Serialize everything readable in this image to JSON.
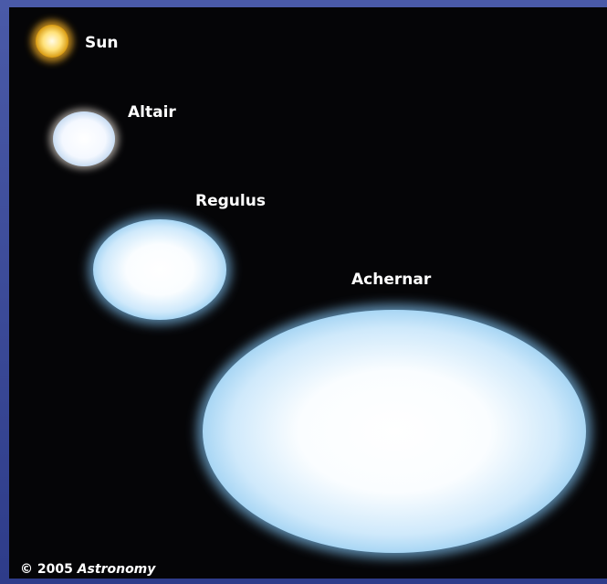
{
  "stars": [
    {
      "label": "Sun"
    },
    {
      "label": "Altair"
    },
    {
      "label": "Regulus"
    },
    {
      "label": "Achernar"
    }
  ],
  "credit": {
    "year": "© 2005",
    "publisher": "Astronomy"
  }
}
